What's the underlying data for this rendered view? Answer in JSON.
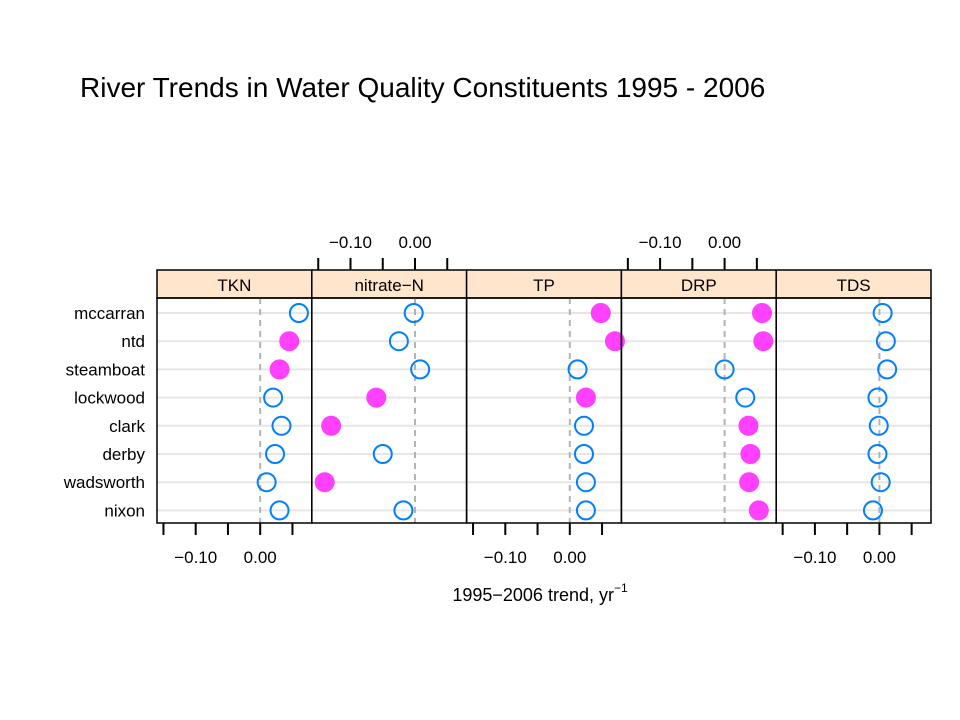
{
  "title": "River Trends in Water Quality Constituents 1995 - 2006",
  "chart_data": {
    "type": "scatter",
    "xlabel_text": "1995−2006 trend,  yr",
    "xlabel_sup": "−1",
    "xlim": [
      -0.16,
      0.08
    ],
    "xticks": [
      -0.15,
      -0.1,
      -0.05,
      0.0,
      0.05
    ],
    "xtick_labels": [
      {
        "value": -0.1,
        "label": "−0.10"
      },
      {
        "value": 0.0,
        "label": "0.00"
      }
    ],
    "reference_line": 0,
    "sites": [
      "mccarran",
      "ntd",
      "steamboat",
      "lockwood",
      "clark",
      "derby",
      "wadsworth",
      "nixon"
    ],
    "colors": {
      "open": "#0080ff",
      "filled": "#ff40ff",
      "strip": "#ffe5cc"
    },
    "panels": [
      {
        "name": "TKN",
        "values": [
          0.06,
          0.045,
          0.03,
          0.02,
          0.033,
          0.023,
          0.01,
          0.03
        ],
        "filled": [
          false,
          true,
          true,
          false,
          false,
          false,
          false,
          false
        ]
      },
      {
        "name": "nitrate−N",
        "values": [
          -0.002,
          -0.025,
          0.008,
          -0.06,
          -0.13,
          -0.05,
          -0.14,
          -0.018
        ],
        "filled": [
          false,
          false,
          false,
          true,
          true,
          false,
          true,
          false
        ]
      },
      {
        "name": "TP",
        "values": [
          0.048,
          0.07,
          0.012,
          0.025,
          0.022,
          0.022,
          0.025,
          0.025
        ],
        "filled": [
          true,
          true,
          false,
          true,
          false,
          false,
          false,
          false
        ]
      },
      {
        "name": "DRP",
        "values": [
          0.058,
          0.06,
          0.0,
          0.032,
          0.037,
          0.04,
          0.038,
          0.053
        ],
        "filled": [
          true,
          true,
          false,
          false,
          true,
          true,
          true,
          true
        ]
      },
      {
        "name": "TDS",
        "values": [
          0.005,
          0.01,
          0.012,
          -0.003,
          -0.001,
          -0.003,
          0.002,
          -0.01
        ],
        "filled": [
          false,
          false,
          false,
          false,
          false,
          false,
          false,
          false
        ]
      }
    ]
  }
}
